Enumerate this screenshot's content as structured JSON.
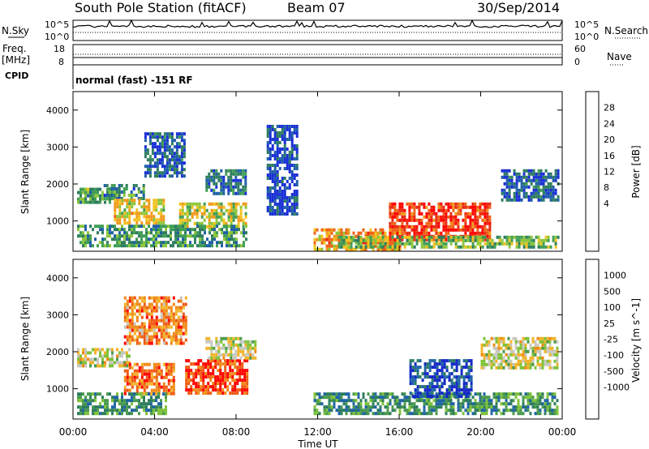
{
  "header": {
    "title": "South Pole Station (fitACF)",
    "beam": "Beam 07",
    "date": "30/Sep/2014"
  },
  "panels": {
    "nsky": {
      "left_label": "N.Sky",
      "left_ticks": [
        "10^5",
        "10^0"
      ],
      "right_label": "N.Search",
      "right_ticks": [
        "10^5",
        "10^0"
      ]
    },
    "freq": {
      "left_label": "Freq.",
      "left_unit": "[MHz]",
      "left_ticks": [
        "18",
        "8"
      ],
      "right_label": "Nave",
      "right_ticks": [
        "60",
        "0"
      ]
    },
    "cpid": {
      "label": "CPID",
      "text": "normal (fast) -151 RF"
    }
  },
  "chart_data": [
    {
      "type": "heatmap",
      "name": "power",
      "ylabel": "Slant Range [km]",
      "xlabel": "Time UT",
      "xlim": [
        "00:00",
        "24:00"
      ],
      "ylim": [
        180,
        4500
      ],
      "yticks": [
        1000,
        2000,
        3000,
        4000
      ],
      "xticks": [
        "00:00",
        "04:00",
        "08:00",
        "12:00",
        "16:00",
        "20:00",
        "00:00"
      ],
      "colorbar": {
        "label": "Power [dB]",
        "ticks": [
          "28",
          "24",
          "20",
          "16",
          "12",
          "8",
          "4"
        ],
        "colors": [
          "#1a2fd6",
          "#1f5fa8",
          "#2e7d5e",
          "#3f9e55",
          "#8cc63a",
          "#f2c220",
          "#f09a1a",
          "#f06418",
          "#e82a14",
          "#ff0000"
        ]
      },
      "regions": [
        {
          "t0": 0.2,
          "t1": 1.8,
          "r0": 1500,
          "r1": 1900,
          "level": 0.35
        },
        {
          "t0": 1.5,
          "t1": 3.5,
          "r0": 1600,
          "r1": 2000,
          "level": 0.25
        },
        {
          "t0": 2.0,
          "t1": 4.5,
          "r0": 900,
          "r1": 1600,
          "level": 0.55
        },
        {
          "t0": 5.2,
          "t1": 8.5,
          "r0": 800,
          "r1": 1500,
          "level": 0.5
        },
        {
          "t0": 3.5,
          "t1": 5.5,
          "r0": 2200,
          "r1": 3400,
          "level": 0.15
        },
        {
          "t0": 0.2,
          "t1": 8.5,
          "r0": 300,
          "r1": 900,
          "level": 0.3
        },
        {
          "t0": 6.5,
          "t1": 8.5,
          "r0": 1700,
          "r1": 2400,
          "level": 0.2
        },
        {
          "t0": 9.5,
          "t1": 11.0,
          "r0": 1200,
          "r1": 3600,
          "level": 0.1
        },
        {
          "t0": 11.8,
          "t1": 16.0,
          "r0": 250,
          "r1": 800,
          "level": 0.65
        },
        {
          "t0": 15.5,
          "t1": 20.5,
          "r0": 500,
          "r1": 1500,
          "level": 0.85
        },
        {
          "t0": 13.0,
          "t1": 23.8,
          "r0": 250,
          "r1": 600,
          "level": 0.4
        },
        {
          "t0": 21.0,
          "t1": 23.8,
          "r0": 1600,
          "r1": 2400,
          "level": 0.15
        }
      ]
    },
    {
      "type": "heatmap",
      "name": "velocity",
      "ylabel": "Slant Range [km]",
      "xlabel": "Time UT",
      "xlim": [
        "00:00",
        "24:00"
      ],
      "ylim": [
        180,
        4500
      ],
      "yticks": [
        1000,
        2000,
        3000,
        4000
      ],
      "xticks": [
        "00:00",
        "04:00",
        "08:00",
        "12:00",
        "16:00",
        "20:00",
        "00:00"
      ],
      "colorbar": {
        "label": "Velocity [m s^-1]",
        "ticks": [
          "1000",
          "500",
          "100",
          "25",
          "-25",
          "-100",
          "-500",
          "-1000"
        ],
        "colors": [
          "#1427c8",
          "#1f64a8",
          "#2e7d5e",
          "#4a9a4e",
          "#7ec23a",
          "#c8c8c0",
          "#f2b42a",
          "#f08a18",
          "#f05a14",
          "#ff0000"
        ]
      },
      "regions": [
        {
          "t0": 0.2,
          "t1": 2.8,
          "r0": 1600,
          "r1": 2100,
          "level": 0.55
        },
        {
          "t0": 2.5,
          "t1": 5.0,
          "r0": 900,
          "r1": 1700,
          "level": 0.8
        },
        {
          "t0": 5.5,
          "t1": 8.5,
          "r0": 850,
          "r1": 1800,
          "level": 0.9
        },
        {
          "t0": 0.2,
          "t1": 4.5,
          "r0": 350,
          "r1": 900,
          "level": 0.3
        },
        {
          "t0": 6.5,
          "t1": 9.0,
          "r0": 1800,
          "r1": 2400,
          "level": 0.55
        },
        {
          "t0": 2.5,
          "t1": 5.5,
          "r0": 2200,
          "r1": 3500,
          "level": 0.75
        },
        {
          "t0": 11.8,
          "t1": 20.0,
          "r0": 300,
          "r1": 900,
          "level": 0.3
        },
        {
          "t0": 16.5,
          "t1": 19.5,
          "r0": 800,
          "r1": 1800,
          "level": 0.1
        },
        {
          "t0": 20.0,
          "t1": 23.8,
          "r0": 1600,
          "r1": 2400,
          "level": 0.55
        },
        {
          "t0": 20.0,
          "t1": 23.8,
          "r0": 300,
          "r1": 900,
          "level": 0.3
        }
      ]
    }
  ]
}
